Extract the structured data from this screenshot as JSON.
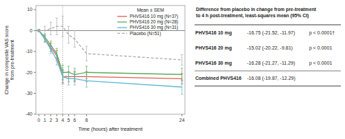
{
  "chart_data": {
    "type": "line",
    "xlabel": "Time (hours) after treatment",
    "ylabel": "Change in composite VAS score\nfrom pre-treatment",
    "x": [
      0,
      1,
      2,
      3,
      4,
      5,
      6,
      8,
      24
    ],
    "xlim": [
      -0.5,
      24.5
    ],
    "xticks": [
      0,
      1,
      2,
      3,
      4,
      5,
      6,
      8,
      24
    ],
    "ylim": [
      -40,
      12
    ],
    "yticks": [
      10,
      0,
      -10,
      -20,
      -30,
      -40
    ],
    "grid": false,
    "legend": "upper right",
    "legend_title": "Mean ± SEM",
    "vline_x": 4,
    "hline_y": 0,
    "series": [
      {
        "name": "PHVS416 10 mg (N=37)",
        "color": "#e05a4e",
        "line_style": "solid",
        "values": [
          0,
          -4,
          -8,
          -12,
          -22,
          -22,
          -22,
          -22,
          -23
        ],
        "yerr": [
          0.5,
          1.5,
          2.0,
          2.5,
          3.0,
          2.5,
          2.5,
          2.5,
          2.5
        ]
      },
      {
        "name": "PHVS416 20 mg (N=28)",
        "color": "#5aab5a",
        "line_style": "solid",
        "values": [
          0,
          -3,
          -7,
          -11,
          -20,
          -20,
          -21,
          -20,
          -21
        ],
        "yerr": [
          0.5,
          1.5,
          2.0,
          2.5,
          3.5,
          3.0,
          3.0,
          3.0,
          3.0
        ]
      },
      {
        "name": "PHVS416 30 mg (N=31)",
        "color": "#5ab8d4",
        "line_style": "solid",
        "values": [
          0,
          -4,
          -9,
          -14,
          -22,
          -23,
          -23,
          -24,
          -27
        ],
        "yerr": [
          0.5,
          1.5,
          2.0,
          2.5,
          3.5,
          3.0,
          3.0,
          3.0,
          3.5
        ]
      },
      {
        "name": "Placebo (N=51)",
        "color": "#aaaaaa",
        "line_style": "dashed",
        "values": [
          0,
          0,
          1,
          2,
          2,
          -2,
          -4,
          -11,
          -14
        ],
        "yerr": [
          0.5,
          2.0,
          3.0,
          4.0,
          5.0,
          4.0,
          4.0,
          3.5,
          2.5
        ]
      }
    ],
    "table": {
      "title": "Difference from placebo in change from pre-treatment\nto 4 h post-treatment, least-squares mean (95% CI)",
      "rows": [
        [
          "PHVS416 10 mg",
          "-16.75 (-21.52, -11.97)",
          "p < 0.0001†"
        ],
        [
          "PHVS416 20 mg",
          "-15.02 (-20.22, -9.81)",
          "p < 0.0001"
        ],
        [
          "PHVS416 30 mg",
          "-16.28 (-21.27, -11.29)",
          "p < 0.0001"
        ],
        [
          "Combined PHVS416",
          "-16.08 (-19.87, -12.29)"
        ]
      ]
    }
  }
}
